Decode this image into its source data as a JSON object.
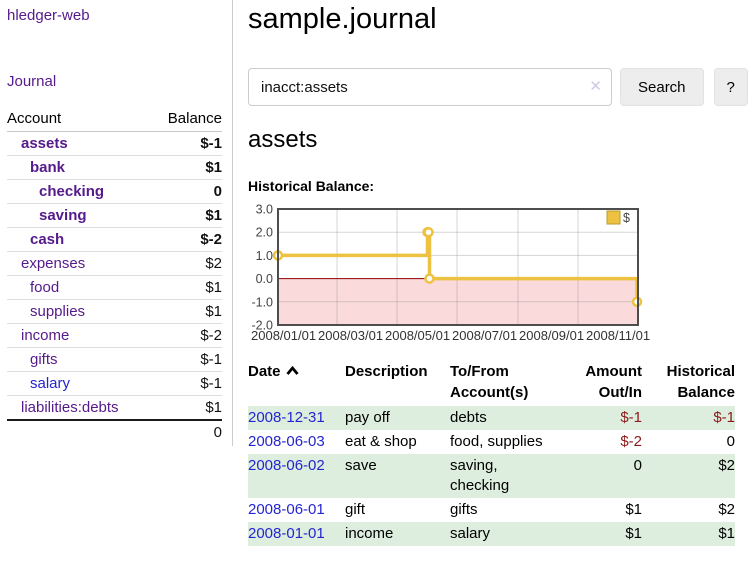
{
  "app": {
    "title": "hledger-web"
  },
  "sidebar": {
    "journal_label": "Journal",
    "accounts_table": {
      "headers": {
        "account": "Account",
        "balance": "Balance"
      },
      "rows": [
        {
          "name": "assets",
          "balance": "$-1"
        },
        {
          "name": "bank",
          "balance": "$1"
        },
        {
          "name": "checking",
          "balance": "0"
        },
        {
          "name": "saving",
          "balance": "$1"
        },
        {
          "name": "cash",
          "balance": "$-2"
        },
        {
          "name": "expenses",
          "balance": "$2"
        },
        {
          "name": "food",
          "balance": "$1"
        },
        {
          "name": "supplies",
          "balance": "$1"
        },
        {
          "name": "income",
          "balance": "$-2"
        },
        {
          "name": "gifts",
          "balance": "$-1"
        },
        {
          "name": "salary",
          "balance": "$-1"
        },
        {
          "name": "liabilities:debts",
          "balance": "$1"
        }
      ],
      "total": "0"
    }
  },
  "header": {
    "title": "sample.journal"
  },
  "search": {
    "query": "inacct:assets",
    "clear_icon": "✕",
    "button_label": "Search",
    "help_label": "?"
  },
  "account_page": {
    "title": "assets",
    "chart_label": "Historical Balance:"
  },
  "chart_data": {
    "type": "line",
    "step": true,
    "title": "Historical Balance:",
    "xlim": [
      "2008-01-01",
      "2009-01-01"
    ],
    "ylim": [
      -2,
      3
    ],
    "y_ticks": [
      3.0,
      2.0,
      1.0,
      0.0,
      -1.0,
      -2.0
    ],
    "x_ticks": [
      {
        "label": "2008/01/01",
        "date": "2008-01-01"
      },
      {
        "label": "2008/03/01",
        "date": "2008-03-01"
      },
      {
        "label": "2008/05/01",
        "date": "2008-05-01"
      },
      {
        "label": "2008/07/01",
        "date": "2008-07-01"
      },
      {
        "label": "2008/09/01",
        "date": "2008-09-01"
      },
      {
        "label": "2008/11/01",
        "date": "2008-11-01"
      }
    ],
    "series": [
      {
        "name": "$",
        "color": "#edc240",
        "points": [
          {
            "date": "2008-01-01",
            "value": 1
          },
          {
            "date": "2008-06-01",
            "value": 2
          },
          {
            "date": "2008-06-02",
            "value": 2
          },
          {
            "date": "2008-06-03",
            "value": 0
          },
          {
            "date": "2008-12-31",
            "value": -1
          }
        ]
      }
    ],
    "zero_line_color": "#8e0000",
    "negative_region_color": "#fadada",
    "legend": {
      "label": "$",
      "position": "top-right"
    }
  },
  "register_table": {
    "headers": {
      "date": "Date",
      "description": "Description",
      "accounts": "To/From Account(s)",
      "amount": "Amount Out/In",
      "balance": "Historical Balance"
    },
    "rows": [
      {
        "date": "2008-12-31",
        "description": "pay off",
        "accounts": "debts",
        "amount": "$-1",
        "balance": "$-1"
      },
      {
        "date": "2008-06-03",
        "description": "eat & shop",
        "accounts": "food, supplies",
        "amount": "$-2",
        "balance": "0"
      },
      {
        "date": "2008-06-02",
        "description": "save",
        "accounts": "saving, checking",
        "amount": "0",
        "balance": "$2"
      },
      {
        "date": "2008-06-01",
        "description": "gift",
        "accounts": "gifts",
        "amount": "$1",
        "balance": "$2"
      },
      {
        "date": "2008-01-01",
        "description": "income",
        "accounts": "salary",
        "amount": "$1",
        "balance": "$1"
      }
    ]
  },
  "colors": {
    "link_purple": "#551a8b",
    "link_blue": "#2525cf",
    "negative_bold": "#8b1a1a",
    "negative_soft": "#b26b6b",
    "row_stripe_green": "#deeede",
    "chart_line_gold": "#edc240",
    "zero_line_red": "#8e0000",
    "negative_region_pink": "#fadada"
  }
}
